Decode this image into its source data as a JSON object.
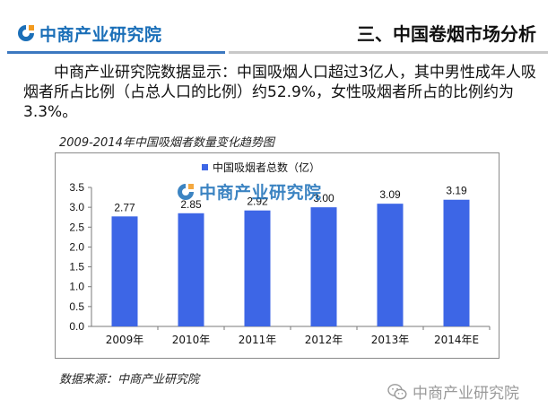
{
  "header": {
    "logo_text": "中商产业研究院",
    "title": "三、中国卷烟市场分析"
  },
  "intro": "中商产业研究院数据显示：中国吸烟人口超过3亿人，其中男性成年人吸烟者所占比例（占总人口的比例）约52.9%，女性吸烟者所占的比例约为3.3%。",
  "chart_caption": "2009-2014年中国吸烟者数量变化趋势图",
  "source": "数据来源：中商产业研究院",
  "watermark": {
    "chart_logo_text": "中商产业研究院",
    "bottom_text": "中商产业研究院"
  },
  "colors": {
    "bar": "#3d66e6",
    "brand_blue": "#1b6fb8",
    "brand_orange": "#f39a1e"
  },
  "chart_data": {
    "type": "bar",
    "categories": [
      "2009年",
      "2010年",
      "2011年",
      "2012年",
      "2013年",
      "2014年E"
    ],
    "series": [
      {
        "name": "中国吸烟者总数（亿）",
        "values": [
          2.77,
          2.85,
          2.92,
          3.0,
          3.09,
          3.19
        ]
      }
    ],
    "data_labels": [
      "2.77",
      "2.85",
      "2.92",
      "3.00",
      "3.09",
      "3.19"
    ],
    "ylim": [
      0,
      3.5
    ],
    "yticks": [
      "0.0",
      "0.5",
      "1.0",
      "1.5",
      "2.0",
      "2.5",
      "3.0",
      "3.5"
    ],
    "grid": false,
    "legend_position": "top"
  }
}
